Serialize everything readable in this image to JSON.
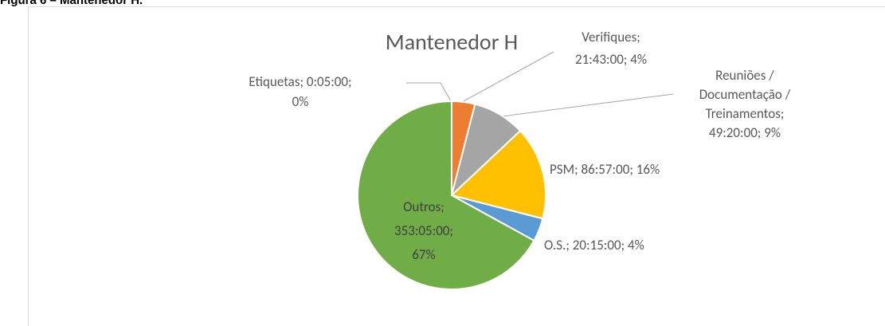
{
  "caption": "Figura 6 – Mantenedor H.",
  "chart_data": {
    "type": "pie",
    "title": "Mantenedor H",
    "values": [
      0,
      4,
      9,
      16,
      4,
      67
    ],
    "value_labels": [
      [
        "Etiquetas; 0:05:00;",
        "0%"
      ],
      [
        "Verifiques;",
        "21:43:00; 4%"
      ],
      [
        "Reuniões /",
        "Documentação /",
        "Treinamentos;",
        "49:20:00; 9%"
      ],
      [
        "PSM; 86:57:00; 16%"
      ],
      [
        "O.S.; 20:15:00; 4%"
      ],
      [
        "Outros;",
        "353:05:00;",
        "67%"
      ]
    ],
    "colors": [
      "#5B9BD5",
      "#ED7D31",
      "#A5A5A5",
      "#FFC000",
      "#5B9BD5",
      "#70AD47"
    ]
  }
}
